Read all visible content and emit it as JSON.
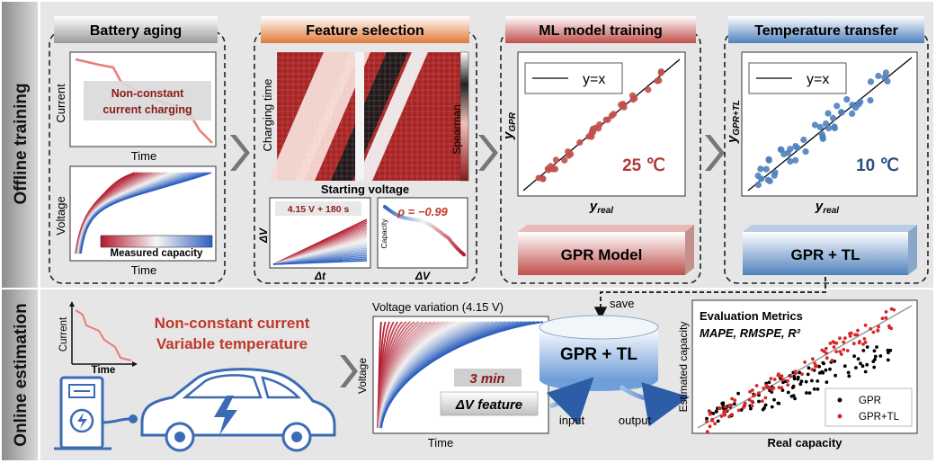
{
  "side_labels": {
    "offline": "Offline training",
    "online": "Online estimation"
  },
  "battery_aging": {
    "title": "Battery aging",
    "current_ylabel": "Current",
    "current_xlabel": "Time",
    "note_line1": "Non-constant",
    "note_line2": "current charging",
    "voltage_ylabel": "Voltage",
    "voltage_xlabel": "Time",
    "colorbar_label": "Measured capacity"
  },
  "feature_selection": {
    "title": "Feature selection",
    "heatmap_ylabel": "Charging time",
    "heatmap_xlabel": "Starting voltage",
    "colorbar_label": "Spearman",
    "sub1_label": "4.15 V + 180 s",
    "sub1_ylabel": "ΔV",
    "sub1_xlabel": "Δt",
    "sub2_label": "ρ = −0.99",
    "sub2_ylabel": "Capacity",
    "sub2_xlabel": "ΔV"
  },
  "ml_training": {
    "title": "ML model training",
    "legend": "y=x",
    "ylabel_main": "y",
    "ylabel_sub": "GPR",
    "xlabel_main": "y",
    "xlabel_sub": "real",
    "temperature": "25 ℃",
    "model_label": "GPR Model"
  },
  "temperature_transfer": {
    "title": "Temperature transfer",
    "legend": "y=x",
    "ylabel_main": "y",
    "ylabel_sub": "GPR+TL",
    "xlabel_main": "y",
    "xlabel_sub": "real",
    "temperature": "10 ℃",
    "model_label": "GPR + TL"
  },
  "online": {
    "current_ylabel": "Current",
    "current_xlabel": "Time",
    "condition_line1": "Non-constant current",
    "condition_line2": "Variable temperature",
    "voltage_title": "Voltage variation (4.15 V)",
    "voltage_ylabel": "Voltage",
    "voltage_xlabel": "Time",
    "feature_time": "3 min",
    "feature_label": "ΔV feature",
    "save_label": "save",
    "db_label": "GPR + TL",
    "input_label": "input",
    "output_label": "output",
    "eval_title": "Evaluation Metrics",
    "eval_metrics": "MAPE, RMSPE, R²",
    "eval_ylabel": "Estimated capacity",
    "eval_xlabel": "Real capacity",
    "legend_gpr": "GPR",
    "legend_gprtl": "GPR+TL"
  },
  "colors": {
    "red": "#c0504d",
    "dark_red": "#8b1a1a",
    "blue": "#4f81bd",
    "dark_blue": "#1f3a6e",
    "panel_bg": "#e8e8e8",
    "box_dash": "#222222"
  }
}
